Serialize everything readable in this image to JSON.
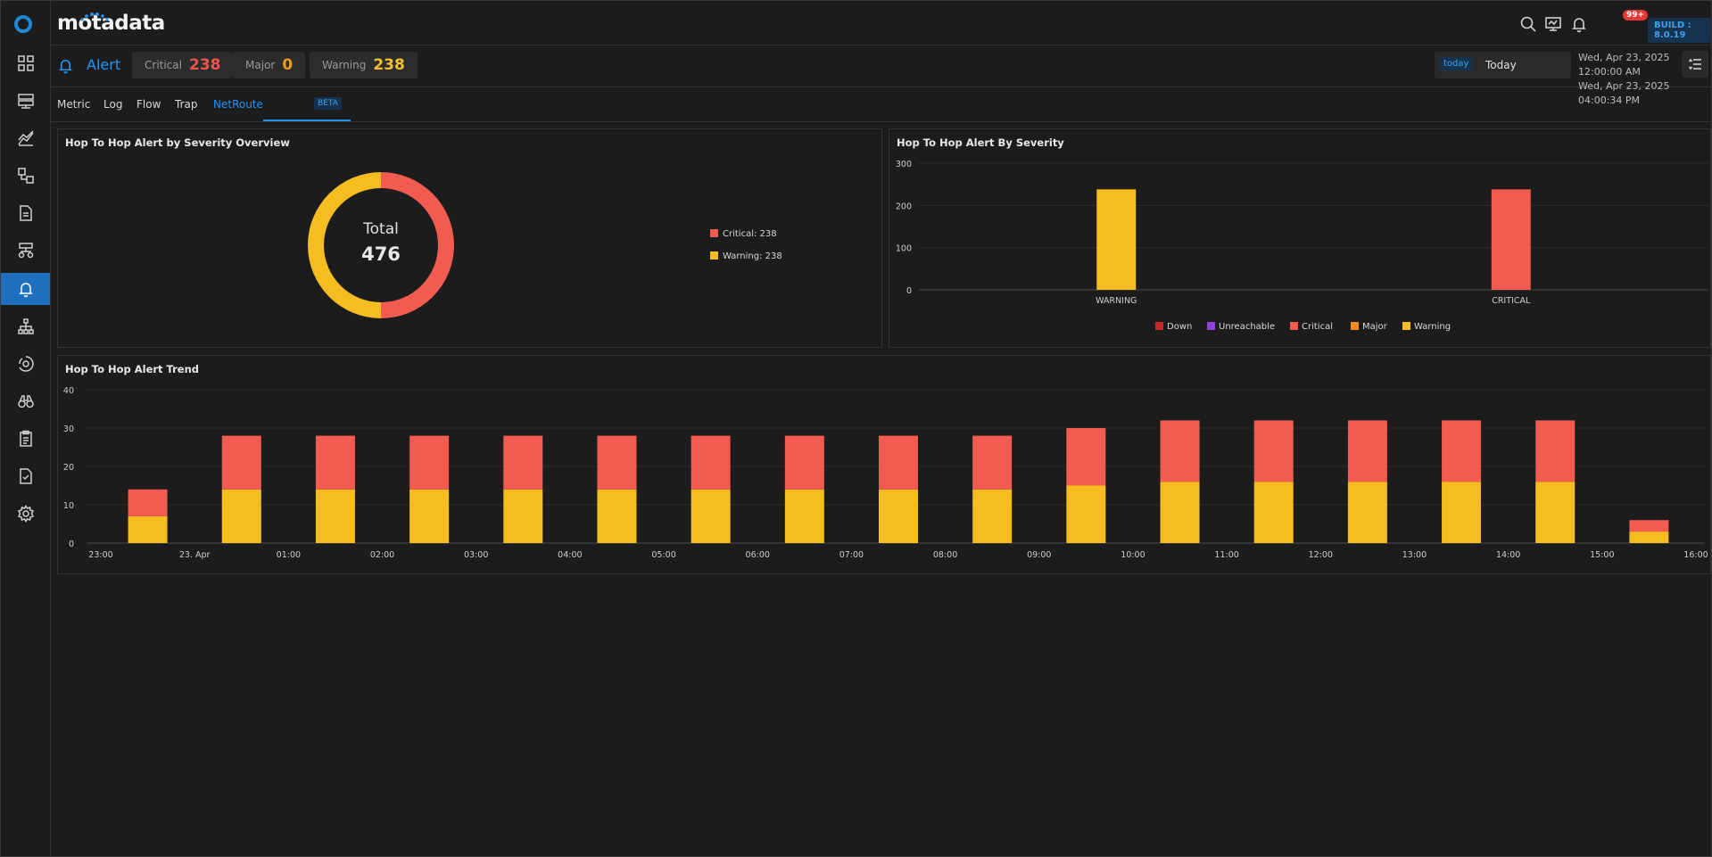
{
  "app": {
    "brand": "motadata",
    "notification_count": "99+",
    "build": "BUILD : 8.0.19"
  },
  "sidebar": {
    "items": [
      "dashboard-icon",
      "monitor-icon",
      "metric-explorer-icon",
      "inventory-icon",
      "report-icon",
      "topology-icon",
      "alert-icon",
      "network-map-icon",
      "settings-gear-icon",
      "binoculars-icon",
      "audit-icon",
      "compliance-icon",
      "admin-settings-icon"
    ],
    "active_index": 6
  },
  "alert_header": {
    "title": "Alert",
    "severities": [
      {
        "label": "Critical",
        "value": "238",
        "color": "#f0544a"
      },
      {
        "label": "Major",
        "value": "0",
        "color": "#f39c12"
      },
      {
        "label": "Warning",
        "value": "238",
        "color": "#f5c02b"
      }
    ],
    "timeline": {
      "tag": "today",
      "value": "Today"
    },
    "range_start": "Wed, Apr 23, 2025 12:00:00 AM",
    "range_end": "Wed, Apr 23, 2025 04:00:34 PM"
  },
  "tabs": {
    "items": [
      "Metric",
      "Log",
      "Flow",
      "Trap",
      "NetRoute"
    ],
    "active": "NetRoute",
    "beta_label": "BETA"
  },
  "colors": {
    "critical": "#f25b4f",
    "warning": "#f5bd1f",
    "down": "#c62828",
    "unreachable": "#8e44d6",
    "major": "#f08a1c"
  },
  "chart_data": [
    {
      "type": "pie",
      "title": "Hop To Hop Alert by Severity Overview",
      "center_label": "Total",
      "center_value": "476",
      "slices": [
        {
          "name": "Critical",
          "value": 238,
          "legend": "Critical: 238"
        },
        {
          "name": "Warning",
          "value": 238,
          "legend": "Warning: 238"
        }
      ]
    },
    {
      "type": "bar",
      "title": "Hop To Hop Alert By Severity",
      "categories": [
        "WARNING",
        "CRITICAL"
      ],
      "values": [
        238,
        238
      ],
      "ylim": [
        0,
        300
      ],
      "yticks": [
        0,
        100,
        200,
        300
      ],
      "legend": [
        "Down",
        "Unreachable",
        "Critical",
        "Major",
        "Warning"
      ]
    },
    {
      "type": "bar",
      "title": "Hop To Hop Alert Trend",
      "stacked": true,
      "ylim": [
        0,
        40
      ],
      "yticks": [
        0,
        10,
        20,
        30,
        40
      ],
      "xticks": [
        "23:00",
        "23. Apr",
        "01:00",
        "02:00",
        "03:00",
        "04:00",
        "05:00",
        "06:00",
        "07:00",
        "08:00",
        "09:00",
        "10:00",
        "11:00",
        "12:00",
        "13:00",
        "14:00",
        "15:00",
        "16:00"
      ],
      "categories": [
        "23:30",
        "00:30",
        "01:30",
        "02:30",
        "03:30",
        "04:30",
        "05:30",
        "06:30",
        "07:30",
        "08:30",
        "09:30",
        "10:30",
        "11:30",
        "12:30",
        "13:30",
        "14:30",
        "15:30"
      ],
      "series": [
        {
          "name": "Warning",
          "values": [
            7,
            14,
            14,
            14,
            14,
            14,
            14,
            14,
            14,
            14,
            15,
            16,
            16,
            16,
            16,
            16,
            3
          ]
        },
        {
          "name": "Critical",
          "values": [
            7,
            14,
            14,
            14,
            14,
            14,
            14,
            14,
            14,
            14,
            15,
            16,
            16,
            16,
            16,
            16,
            3
          ]
        }
      ]
    }
  ]
}
